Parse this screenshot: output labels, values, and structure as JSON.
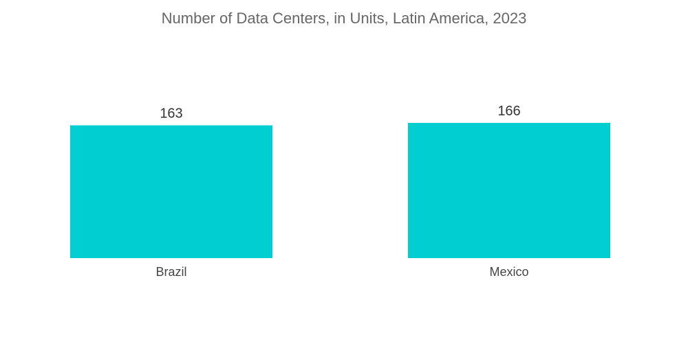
{
  "chart_data": {
    "type": "bar",
    "title": "Number of Data Centers, in Units, Latin America, 2023",
    "categories": [
      "Brazil",
      "Mexico"
    ],
    "values": [
      163,
      166
    ],
    "xlabel": "",
    "ylabel": "",
    "ylim": [
      0,
      166
    ],
    "grid": false,
    "legend": "none",
    "bar_color": "#00CED1"
  }
}
